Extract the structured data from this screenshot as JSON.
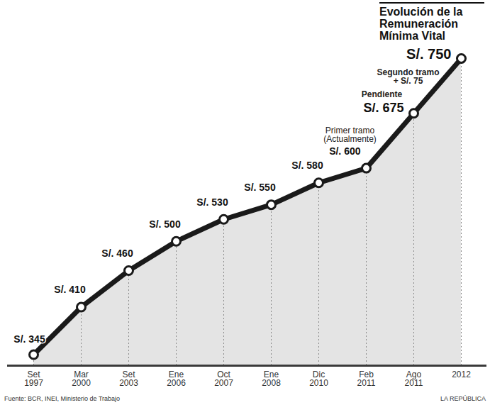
{
  "chart_data": {
    "type": "line",
    "title": "Evolución de la Remuneración Mínima Vital",
    "categories": [
      "Set 1997",
      "Mar 2000",
      "Set 2003",
      "Ene 2006",
      "Oct 2007",
      "Ene 2008",
      "Dic 2010",
      "Feb 2011",
      "Ago 2011",
      "2012"
    ],
    "values": [
      345,
      410,
      460,
      500,
      530,
      550,
      580,
      600,
      675,
      750
    ],
    "value_labels": [
      "S/. 345",
      "S/. 410",
      "S/. 460",
      "S/. 500",
      "S/. 530",
      "S/. 550",
      "S/. 580",
      "S/. 600",
      "S/. 675",
      "S/. 750"
    ],
    "data_labels": true,
    "color": "#1a1a1a",
    "marker": "circle",
    "ylim": [
      330,
      780
    ],
    "tick_labels": "x",
    "annotations": [
      "Primer tramo\n(Actualmente)",
      "Pendiente",
      "Segundo tramo\n+ S/. 75"
    ],
    "source": "Fuente: BCR, INEI, Ministerio de Trabajo",
    "publisher": "LA REPÚBLICA"
  }
}
